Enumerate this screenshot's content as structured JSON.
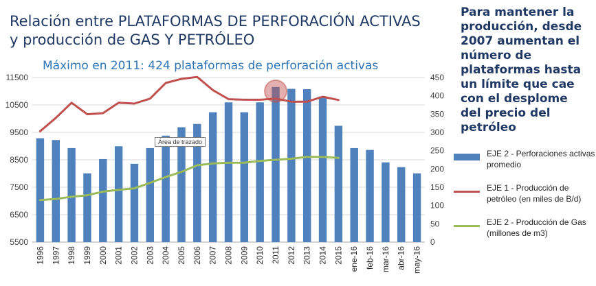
{
  "header": {
    "title_line1": "Relación entre PLATAFORMAS DE PERFORACIÓN ACTIVAS",
    "title_line2": "y producción de GAS Y PETRÓLEO",
    "subtitle": "Máximo en 2011: 424 plataformas de perforación activas"
  },
  "side_note": "Para mantener la producción, desde 2007 aumentan el número de plataformas hasta un límite que cae con el desplome del precio del petróleo",
  "tooltip": "Área de trazado",
  "colors": {
    "bars": "#4f81bd",
    "oil_line": "#c0504d",
    "gas_line": "#9bbb59",
    "title": "#1f3864",
    "subtitle": "#2e75b6",
    "highlight": "#c0504d"
  },
  "chart_data": {
    "type": "bar",
    "categories": [
      "1996",
      "1997",
      "1998",
      "1999",
      "2000",
      "2001",
      "2002",
      "2003",
      "2004",
      "2005",
      "2006",
      "2007",
      "2008",
      "2009",
      "2010",
      "2011",
      "2012",
      "2013",
      "2014",
      "2015",
      "ene-16",
      "feb-16",
      "mar-16",
      "abr-16",
      "may-16"
    ],
    "left_axis": {
      "ylim": [
        5500,
        11500
      ],
      "ticks": [
        5500,
        6500,
        7500,
        8500,
        9500,
        10500,
        11500
      ]
    },
    "right_axis": {
      "ylim": [
        0,
        450
      ],
      "ticks": [
        0,
        50,
        100,
        150,
        200,
        250,
        300,
        350,
        400,
        450
      ]
    },
    "series": [
      {
        "name": "EJE 2 - Perforaciones activas promedio",
        "type": "bar",
        "axis": "right",
        "values": [
          284,
          279,
          257,
          188,
          227,
          262,
          214,
          257,
          291,
          314,
          323,
          355,
          382,
          355,
          382,
          424,
          419,
          418,
          398,
          318,
          257,
          252,
          218,
          205,
          188
        ]
      },
      {
        "name": "EJE 1 - Producción de petróleo (en miles de B/d)",
        "type": "line",
        "axis": "left",
        "values": [
          9540,
          10030,
          10580,
          10160,
          10200,
          10580,
          10550,
          10730,
          11300,
          11450,
          11520,
          11040,
          10710,
          10690,
          10690,
          10730,
          10620,
          10620,
          10800,
          10680,
          null,
          null,
          null,
          null,
          null
        ]
      },
      {
        "name": "EJE 2 - Producción de Gas (millones de m3)",
        "type": "line",
        "axis": "right",
        "values": [
          115,
          118,
          124,
          128,
          138,
          143,
          147,
          162,
          178,
          192,
          210,
          215,
          217,
          217,
          222,
          225,
          228,
          233,
          233,
          230,
          null,
          null,
          null,
          null,
          null
        ]
      }
    ],
    "highlight_category": "2011",
    "legend_position": "right"
  }
}
